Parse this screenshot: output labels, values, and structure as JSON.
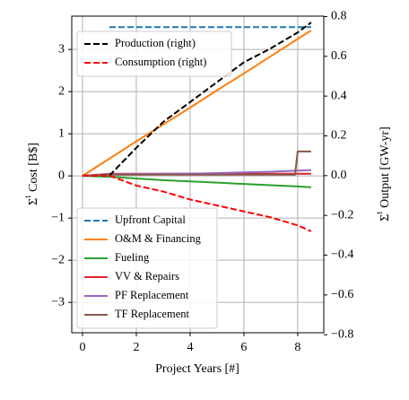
{
  "chart_data": {
    "type": "line",
    "xlabel": "Project Years [#]",
    "ylabel": {
      "symbol": "Σ",
      "superscript": "t",
      "text": "Cost [B$]"
    },
    "y2label": {
      "symbol": "Σ",
      "superscript": "t",
      "text": "Output [GW-yr]"
    },
    "xlim": [
      -0.4,
      8.97
    ],
    "ylim": [
      -3.72,
      3.79
    ],
    "y2lim": [
      -0.79,
      0.802
    ],
    "xticks": [
      0,
      2,
      4,
      6,
      8
    ],
    "yticks": [
      {
        "value": -3,
        "label": "−3"
      },
      {
        "value": -2,
        "label": "−2"
      },
      {
        "value": -1,
        "label": "−1"
      },
      0,
      1,
      2,
      3
    ],
    "y2ticks": [
      {
        "value": -0.8,
        "label": "−0.8"
      },
      {
        "value": -0.6,
        "label": "−0.6"
      },
      {
        "value": -0.4,
        "label": "−0.4"
      },
      {
        "value": -0.2,
        "label": "−0.2"
      },
      {
        "value": 0,
        "label": "0.0"
      },
      0.2,
      0.4,
      0.6,
      0.8
    ],
    "grid": true,
    "legends": {
      "y": "lower left",
      "y2": "upper left"
    },
    "series": [
      {
        "name": "Upfront Capital",
        "color": "#1f77b4",
        "dash": true,
        "x": [
          1,
          8.5
        ],
        "values": [
          3.53,
          3.53
        ]
      },
      {
        "name": "O&M & Financing",
        "color": "#ff7f0e",
        "x": [
          0,
          1,
          2,
          3,
          4,
          5,
          6,
          7,
          8,
          8.5
        ],
        "values": [
          0,
          0.41,
          0.82,
          1.22,
          1.62,
          2.03,
          2.43,
          2.84,
          3.25,
          3.45
        ]
      },
      {
        "name": "Fueling",
        "color": "#2ca02c",
        "x": [
          0,
          1,
          2,
          3,
          4,
          5,
          6,
          7,
          8,
          8.5
        ],
        "values": [
          0,
          -0.02,
          -0.06,
          -0.1,
          -0.13,
          -0.16,
          -0.19,
          -0.22,
          -0.25,
          -0.27
        ]
      },
      {
        "name": "VV & Repairs",
        "color": "#d62728",
        "x": [
          0,
          1,
          8.5
        ],
        "values": [
          0,
          0.05,
          0.05
        ]
      },
      {
        "name": "PF Replacement",
        "color": "#9467bd",
        "x": [
          0,
          1,
          4.5,
          7,
          8.5
        ],
        "values": [
          0,
          0.04,
          0.06,
          0.1,
          0.14
        ]
      },
      {
        "name": "TF Replacement",
        "color": "#8c564b",
        "x": [
          0,
          1,
          7.9,
          8,
          8.5
        ],
        "values": [
          0,
          0.03,
          0.03,
          0.58,
          0.58
        ]
      },
      {
        "name": "Production (right)",
        "color": "#000000",
        "dash": true,
        "axis": "y2",
        "x": [
          0,
          1,
          2,
          3,
          4,
          5,
          6,
          7,
          8,
          8.5
        ],
        "values": [
          0,
          0,
          0.14,
          0.27,
          0.37,
          0.47,
          0.57,
          0.64,
          0.72,
          0.77
        ]
      },
      {
        "name": "Consumption (right)",
        "color": "#ff0000",
        "dash": true,
        "axis": "y2",
        "x": [
          0,
          1,
          2,
          3,
          4,
          5,
          6,
          7,
          8,
          8.5
        ],
        "values": [
          0,
          0,
          -0.05,
          -0.08,
          -0.12,
          -0.15,
          -0.18,
          -0.21,
          -0.25,
          -0.28
        ]
      }
    ]
  }
}
